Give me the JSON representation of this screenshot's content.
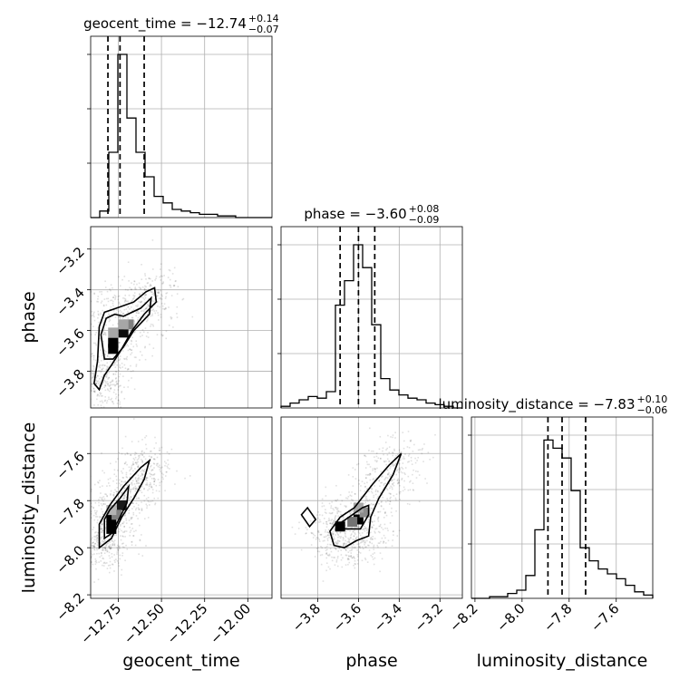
{
  "chart_data": {
    "type": "corner",
    "parameters": [
      "geocent_time",
      "phase",
      "luminosity_distance"
    ],
    "axis_labels": {
      "geocent_time": "geocent_time",
      "phase": "phase",
      "luminosity_distance": "luminosity_distance"
    },
    "ranges": {
      "geocent_time": [
        -12.91,
        -11.86
      ],
      "phase": [
        -3.98,
        -3.09
      ],
      "luminosity_distance": [
        -8.215,
        -7.445
      ]
    },
    "ticks": {
      "geocent_time": {
        "values": [
          -12.75,
          -12.5,
          -12.25,
          -12.0
        ],
        "labels": [
          "−12.75",
          "−12.50",
          "−12.25",
          "−12.00"
        ]
      },
      "phase": {
        "values": [
          -3.8,
          -3.6,
          -3.4,
          -3.2
        ],
        "labels": [
          "−3.8",
          "−3.6",
          "−3.4",
          "−3.2"
        ]
      },
      "luminosity_distance": {
        "values": [
          -8.2,
          -8.0,
          -7.8,
          -7.6
        ],
        "labels": [
          "−8.2",
          "−8.0",
          "−7.8",
          "−7.6"
        ]
      }
    },
    "titles": [
      {
        "parameter": "geocent_time",
        "prefix": "geocent_time = −12.74",
        "plus": "+0.14",
        "minus": "−0.07"
      },
      {
        "parameter": "phase",
        "prefix": "phase = −3.60",
        "plus": "+0.08",
        "minus": "−0.09"
      },
      {
        "parameter": "luminosity_distance",
        "prefix": "luminosity_distance = −7.83",
        "plus": "+0.10",
        "minus": "−0.06"
      }
    ],
    "quantiles": {
      "geocent_time": [
        -12.81,
        -12.74,
        -12.6
      ],
      "phase": [
        -3.69,
        -3.6,
        -3.52
      ],
      "luminosity_distance": [
        -7.89,
        -7.83,
        -7.73
      ]
    },
    "histograms": {
      "geocent_time": [
        0,
        0.04,
        0.4,
        1.0,
        0.61,
        0.4,
        0.25,
        0.13,
        0.09,
        0.05,
        0.04,
        0.03,
        0.02,
        0.02,
        0.01,
        0.01,
        0,
        0,
        0,
        0
      ],
      "phase": [
        0.01,
        0.03,
        0.05,
        0.07,
        0.06,
        0.1,
        0.63,
        0.78,
        1.0,
        0.86,
        0.51,
        0.18,
        0.11,
        0.08,
        0.06,
        0.05,
        0.03,
        0.02,
        0.01,
        0
      ],
      "luminosity_distance": [
        0,
        0,
        0.01,
        0.01,
        0.03,
        0.05,
        0.14,
        0.42,
        0.97,
        0.92,
        0.86,
        0.66,
        0.31,
        0.23,
        0.18,
        0.15,
        0.12,
        0.08,
        0.04,
        0.02
      ]
    },
    "pairs": [
      {
        "x": "geocent_time",
        "y": "phase",
        "density_cells": [
          {
            "x": -12.78,
            "y": -3.66,
            "w": 1.0
          },
          {
            "x": -12.78,
            "y": -3.69,
            "w": 1.0
          },
          {
            "x": -12.72,
            "y": -3.61,
            "w": 0.95
          },
          {
            "x": -12.69,
            "y": -3.57,
            "w": 0.5
          },
          {
            "x": -12.72,
            "y": -3.57,
            "w": 0.35
          },
          {
            "x": -12.78,
            "y": -3.61,
            "w": 0.35
          }
        ],
        "contours": [
          [
            [
              -12.85,
              -3.62
            ],
            [
              -12.82,
              -3.54
            ],
            [
              -12.77,
              -3.52
            ],
            [
              -12.72,
              -3.53
            ],
            [
              -12.62,
              -3.49
            ],
            [
              -12.56,
              -3.44
            ],
            [
              -12.57,
              -3.52
            ],
            [
              -12.66,
              -3.6
            ],
            [
              -12.72,
              -3.68
            ],
            [
              -12.78,
              -3.74
            ],
            [
              -12.83,
              -3.74
            ],
            [
              -12.84,
              -3.68
            ],
            [
              -12.85,
              -3.62
            ]
          ],
          [
            [
              -12.89,
              -3.86
            ],
            [
              -12.87,
              -3.75
            ],
            [
              -12.86,
              -3.58
            ],
            [
              -12.83,
              -3.51
            ],
            [
              -12.76,
              -3.49
            ],
            [
              -12.66,
              -3.46
            ],
            [
              -12.59,
              -3.41
            ],
            [
              -12.54,
              -3.39
            ],
            [
              -12.53,
              -3.46
            ],
            [
              -12.6,
              -3.52
            ],
            [
              -12.67,
              -3.6
            ],
            [
              -12.73,
              -3.69
            ],
            [
              -12.79,
              -3.77
            ],
            [
              -12.83,
              -3.82
            ],
            [
              -12.86,
              -3.89
            ],
            [
              -12.89,
              -3.86
            ]
          ]
        ]
      },
      {
        "x": "geocent_time",
        "y": "luminosity_distance",
        "density_cells": [
          {
            "x": -12.79,
            "y": -7.88,
            "w": 1.0
          },
          {
            "x": -12.79,
            "y": -7.92,
            "w": 1.0
          },
          {
            "x": -12.73,
            "y": -7.82,
            "w": 0.9
          },
          {
            "x": -12.76,
            "y": -7.86,
            "w": 0.5
          },
          {
            "x": -12.79,
            "y": -7.84,
            "w": 0.3
          }
        ],
        "contours": [
          [
            [
              -12.83,
              -7.96
            ],
            [
              -12.83,
              -7.88
            ],
            [
              -12.8,
              -7.84
            ],
            [
              -12.74,
              -7.79
            ],
            [
              -12.69,
              -7.74
            ],
            [
              -12.7,
              -7.81
            ],
            [
              -12.74,
              -7.87
            ],
            [
              -12.79,
              -7.94
            ],
            [
              -12.83,
              -7.96
            ]
          ],
          [
            [
              -12.86,
              -8.0
            ],
            [
              -12.86,
              -7.9
            ],
            [
              -12.8,
              -7.82
            ],
            [
              -12.72,
              -7.74
            ],
            [
              -12.62,
              -7.66
            ],
            [
              -12.57,
              -7.63
            ],
            [
              -12.6,
              -7.71
            ],
            [
              -12.66,
              -7.79
            ],
            [
              -12.73,
              -7.87
            ],
            [
              -12.79,
              -7.96
            ],
            [
              -12.86,
              -8.0
            ]
          ]
        ]
      },
      {
        "x": "phase",
        "y": "luminosity_distance",
        "density_cells": [
          {
            "x": -3.69,
            "y": -7.91,
            "w": 1.0
          },
          {
            "x": -3.6,
            "y": -7.88,
            "w": 1.0
          },
          {
            "x": -3.63,
            "y": -7.89,
            "w": 0.55
          },
          {
            "x": -3.57,
            "y": -7.85,
            "w": 0.45
          },
          {
            "x": -3.6,
            "y": -7.83,
            "w": 0.35
          }
        ],
        "contours": [
          [
            [
              -3.71,
              -7.92
            ],
            [
              -3.68,
              -7.89
            ],
            [
              -3.63,
              -7.86
            ],
            [
              -3.58,
              -7.83
            ],
            [
              -3.55,
              -7.82
            ],
            [
              -3.55,
              -7.86
            ],
            [
              -3.59,
              -7.92
            ],
            [
              -3.64,
              -7.92
            ],
            [
              -3.71,
              -7.92
            ]
          ],
          [
            [
              -3.74,
              -7.93
            ],
            [
              -3.69,
              -7.87
            ],
            [
              -3.62,
              -7.83
            ],
            [
              -3.53,
              -7.73
            ],
            [
              -3.45,
              -7.65
            ],
            [
              -3.39,
              -7.6
            ],
            [
              -3.43,
              -7.69
            ],
            [
              -3.5,
              -7.79
            ],
            [
              -3.54,
              -7.87
            ],
            [
              -3.55,
              -7.95
            ],
            [
              -3.61,
              -7.97
            ],
            [
              -3.67,
              -8.0
            ],
            [
              -3.72,
              -7.99
            ],
            [
              -3.74,
              -7.93
            ]
          ],
          [
            [
              -3.88,
              -7.86
            ],
            [
              -3.84,
              -7.91
            ],
            [
              -3.81,
              -7.88
            ],
            [
              -3.85,
              -7.83
            ],
            [
              -3.88,
              -7.86
            ]
          ]
        ]
      }
    ]
  }
}
